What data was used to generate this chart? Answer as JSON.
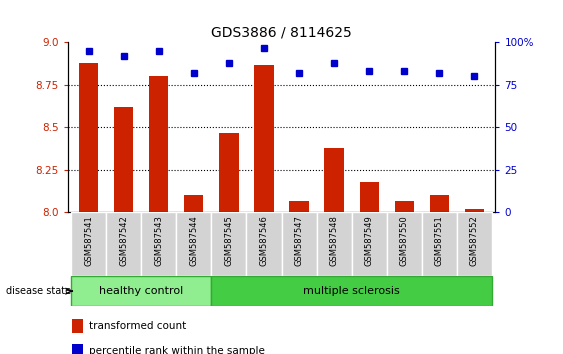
{
  "title": "GDS3886 / 8114625",
  "samples": [
    "GSM587541",
    "GSM587542",
    "GSM587543",
    "GSM587544",
    "GSM587545",
    "GSM587546",
    "GSM587547",
    "GSM587548",
    "GSM587549",
    "GSM587550",
    "GSM587551",
    "GSM587552"
  ],
  "red_values": [
    8.88,
    8.62,
    8.8,
    8.1,
    8.47,
    8.87,
    8.07,
    8.38,
    8.18,
    8.07,
    8.1,
    8.02
  ],
  "blue_values": [
    95,
    92,
    95,
    82,
    88,
    97,
    82,
    88,
    83,
    83,
    82,
    80
  ],
  "ylim_left": [
    8.0,
    9.0
  ],
  "ylim_right": [
    0,
    100
  ],
  "yticks_left": [
    8.0,
    8.25,
    8.5,
    8.75,
    9.0
  ],
  "yticks_right": [
    0,
    25,
    50,
    75,
    100
  ],
  "ytick_labels_right": [
    "0",
    "25",
    "50",
    "75",
    "100%"
  ],
  "bar_color": "#cc2200",
  "dot_color": "#0000cc",
  "n_healthy": 4,
  "healthy_color": "#90ee90",
  "ms_color": "#44cc44",
  "group_label_healthy": "healthy control",
  "group_label_ms": "multiple sclerosis",
  "disease_state_label": "disease state",
  "legend_red": "transformed count",
  "legend_blue": "percentile rank within the sample",
  "xticklabel_bg": "#d3d3d3",
  "grid_lines": [
    8.25,
    8.5,
    8.75
  ]
}
